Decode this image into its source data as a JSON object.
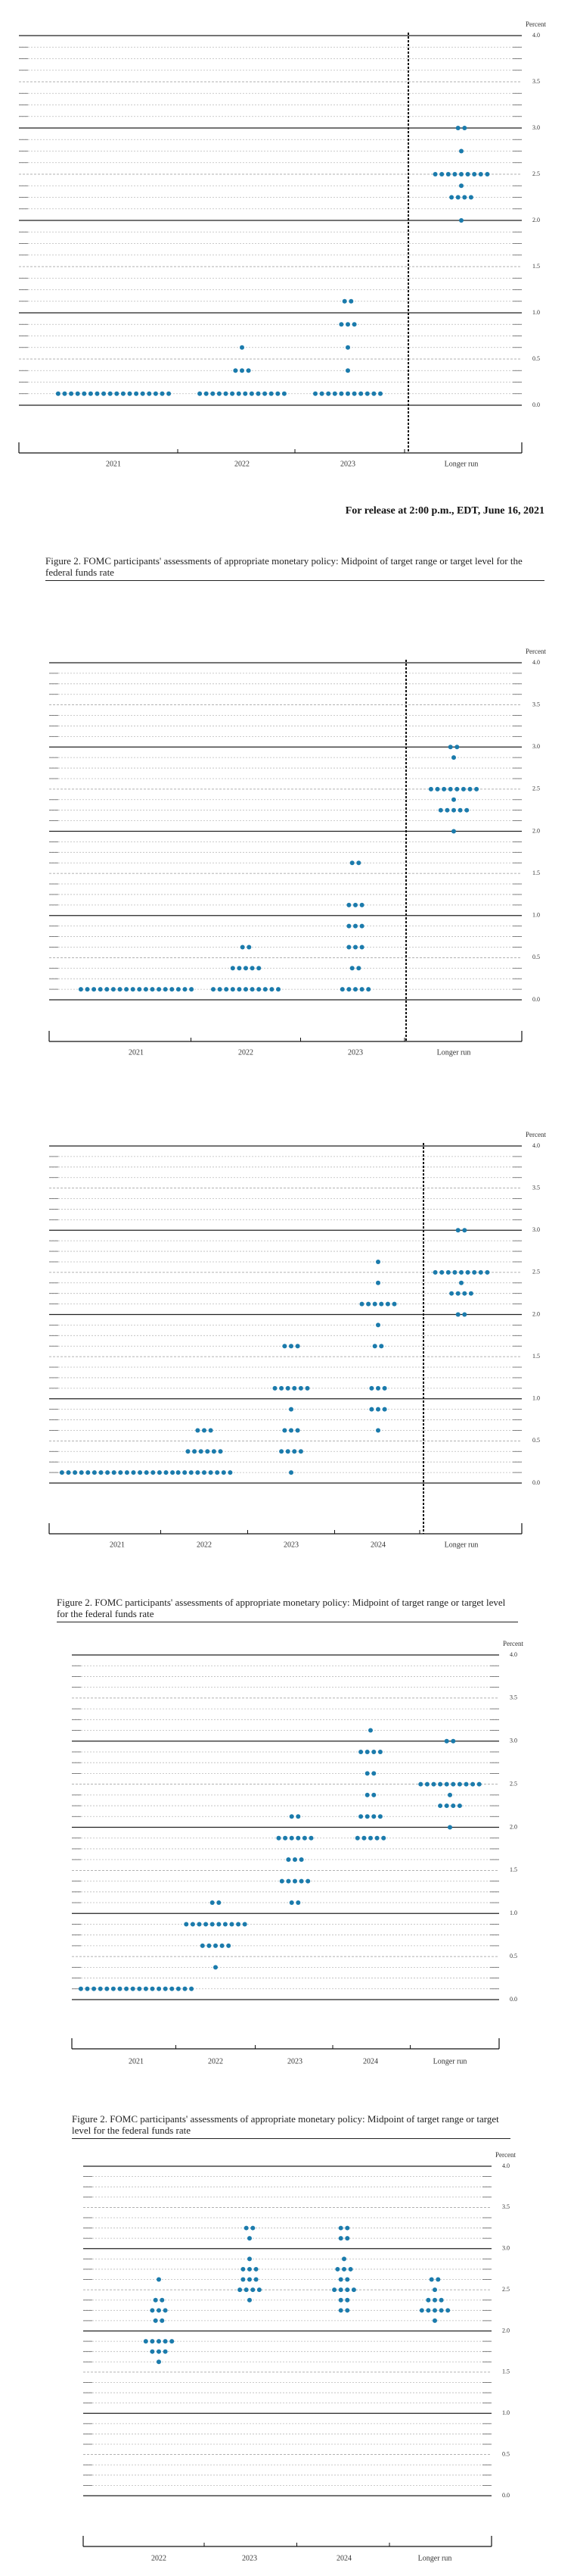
{
  "release": "For release at 2:00 p.m., EDT, June 16, 2021",
  "chart_data": [
    {
      "type": "dot",
      "y_label": "Percent",
      "color": "#1b7bac",
      "grid": true,
      "categories": [
        "2021",
        "2022",
        "2023",
        "Longer run"
      ],
      "ylim": [
        0,
        4
      ],
      "yticks": [
        {
          "value": 0,
          "label": "0.0"
        },
        0.5,
        {
          "value": 1,
          "label": "1.0"
        },
        1.5,
        {
          "value": 2,
          "label": "2.0"
        },
        2.5,
        {
          "value": 3,
          "label": "3.0"
        },
        3.5,
        {
          "value": 4,
          "label": "4.0"
        }
      ],
      "dots": [
        [
          {
            "value": 0.125,
            "count": 18
          }
        ],
        [
          {
            "value": 0.125,
            "count": 14
          },
          {
            "value": 0.375,
            "count": 3
          },
          {
            "value": 0.625,
            "count": 1
          }
        ],
        [
          {
            "value": 0.125,
            "count": 11
          },
          {
            "value": 0.375,
            "count": 1
          },
          {
            "value": 0.625,
            "count": 1
          },
          {
            "value": 0.875,
            "count": 3
          },
          {
            "value": 1.125,
            "count": 2
          }
        ],
        [
          {
            "value": 2.0,
            "count": 1
          },
          {
            "value": 2.25,
            "count": 4
          },
          {
            "value": 2.375,
            "count": 1
          },
          {
            "value": 2.5,
            "count": 9
          },
          {
            "value": 2.75,
            "count": 1
          },
          {
            "value": 3.0,
            "count": 2
          }
        ]
      ]
    },
    {
      "type": "dot",
      "title": "Figure 2.  FOMC participants' assessments of appropriate monetary policy:  Midpoint of target range or target level for the federal funds rate",
      "y_label": "Percent",
      "color": "#1b7bac",
      "grid": true,
      "categories": [
        "2021",
        "2022",
        "2023",
        "Longer run"
      ],
      "ylim": [
        0,
        4
      ],
      "yticks": [
        {
          "value": 0,
          "label": "0.0"
        },
        0.5,
        {
          "value": 1,
          "label": "1.0"
        },
        1.5,
        {
          "value": 2,
          "label": "2.0"
        },
        2.5,
        {
          "value": 3,
          "label": "3.0"
        },
        3.5,
        {
          "value": 4,
          "label": "4.0"
        }
      ],
      "dots": [
        [
          {
            "value": 0.125,
            "count": 18
          }
        ],
        [
          {
            "value": 0.125,
            "count": 11
          },
          {
            "value": 0.375,
            "count": 5
          },
          {
            "value": 0.625,
            "count": 2
          }
        ],
        [
          {
            "value": 0.125,
            "count": 5
          },
          {
            "value": 0.375,
            "count": 2
          },
          {
            "value": 0.625,
            "count": 3
          },
          {
            "value": 0.875,
            "count": 3
          },
          {
            "value": 1.125,
            "count": 3
          },
          {
            "value": 1.625,
            "count": 2
          }
        ],
        [
          {
            "value": 2.0,
            "count": 1
          },
          {
            "value": 2.25,
            "count": 5
          },
          {
            "value": 2.375,
            "count": 1
          },
          {
            "value": 2.5,
            "count": 8
          },
          {
            "value": 2.875,
            "count": 1
          },
          {
            "value": 3.0,
            "count": 2
          }
        ]
      ]
    },
    {
      "type": "dot",
      "y_label": "Percent",
      "color": "#1b7bac",
      "grid": true,
      "categories": [
        "2021",
        "2022",
        "2023",
        "2024",
        "Longer run"
      ],
      "ylim": [
        0,
        4
      ],
      "yticks": [
        {
          "value": 0,
          "label": "0.0"
        },
        0.5,
        {
          "value": 1,
          "label": "1.0"
        },
        1.5,
        {
          "value": 2,
          "label": "2.0"
        },
        2.5,
        {
          "value": 3,
          "label": "3.0"
        },
        3.5,
        {
          "value": 4,
          "label": "4.0"
        }
      ],
      "dots": [
        [
          {
            "value": 0.125,
            "count": 18
          }
        ],
        [
          {
            "value": 0.125,
            "count": 9
          },
          {
            "value": 0.375,
            "count": 6
          },
          {
            "value": 0.625,
            "count": 3
          }
        ],
        [
          {
            "value": 0.125,
            "count": 1
          },
          {
            "value": 0.375,
            "count": 4
          },
          {
            "value": 0.625,
            "count": 3
          },
          {
            "value": 0.875,
            "count": 1
          },
          {
            "value": 1.125,
            "count": 6
          },
          {
            "value": 1.625,
            "count": 3
          }
        ],
        [
          {
            "value": 0.625,
            "count": 1
          },
          {
            "value": 0.875,
            "count": 3
          },
          {
            "value": 1.125,
            "count": 3
          },
          {
            "value": 1.625,
            "count": 2
          },
          {
            "value": 1.875,
            "count": 1
          },
          {
            "value": 2.125,
            "count": 6
          },
          {
            "value": 2.375,
            "count": 1
          },
          {
            "value": 2.625,
            "count": 1
          }
        ],
        [
          {
            "value": 2.0,
            "count": 2
          },
          {
            "value": 2.25,
            "count": 4
          },
          {
            "value": 2.375,
            "count": 1
          },
          {
            "value": 2.5,
            "count": 9
          },
          {
            "value": 3.0,
            "count": 2
          }
        ]
      ]
    },
    {
      "type": "dot",
      "title": "Figure 2.  FOMC participants' assessments of appropriate monetary policy:  Midpoint of target range or target level for the federal funds rate",
      "y_label": "Percent",
      "color": "#1b7bac",
      "grid": true,
      "categories": [
        "2021",
        "2022",
        "2023",
        "2024",
        "Longer run"
      ],
      "ylim": [
        0,
        4
      ],
      "yticks": [
        {
          "value": 0,
          "label": "0.0"
        },
        0.5,
        {
          "value": 1,
          "label": "1.0"
        },
        1.5,
        {
          "value": 2,
          "label": "2.0"
        },
        2.5,
        {
          "value": 3,
          "label": "3.0"
        },
        3.5,
        {
          "value": 4,
          "label": "4.0"
        }
      ],
      "dots": [
        [
          {
            "value": 0.125,
            "count": 18
          }
        ],
        [
          {
            "value": 0.375,
            "count": 1
          },
          {
            "value": 0.625,
            "count": 5
          },
          {
            "value": 0.875,
            "count": 10
          },
          {
            "value": 1.125,
            "count": 2
          }
        ],
        [
          {
            "value": 1.125,
            "count": 2
          },
          {
            "value": 1.375,
            "count": 5
          },
          {
            "value": 1.625,
            "count": 3
          },
          {
            "value": 1.875,
            "count": 6
          },
          {
            "value": 2.125,
            "count": 2
          }
        ],
        [
          {
            "value": 1.875,
            "count": 5
          },
          {
            "value": 2.125,
            "count": 4
          },
          {
            "value": 2.375,
            "count": 2
          },
          {
            "value": 2.625,
            "count": 2
          },
          {
            "value": 2.875,
            "count": 4
          },
          {
            "value": 3.125,
            "count": 1
          }
        ],
        [
          {
            "value": 2.0,
            "count": 1
          },
          {
            "value": 2.25,
            "count": 4
          },
          {
            "value": 2.375,
            "count": 1
          },
          {
            "value": 2.5,
            "count": 10
          },
          {
            "value": 3.0,
            "count": 2
          }
        ]
      ]
    },
    {
      "type": "dot",
      "title": "Figure 2.  FOMC participants' assessments of appropriate monetary policy:  Midpoint of target range or target level for the federal funds rate",
      "y_label": "Percent",
      "color": "#1b7bac",
      "grid": true,
      "categories": [
        "2022",
        "2023",
        "2024",
        "Longer run"
      ],
      "ylim": [
        0,
        4
      ],
      "yticks": [
        {
          "value": 0,
          "label": "0.0"
        },
        0.5,
        {
          "value": 1,
          "label": "1.0"
        },
        1.5,
        {
          "value": 2,
          "label": "2.0"
        },
        2.5,
        {
          "value": 3,
          "label": "3.0"
        },
        3.5,
        {
          "value": 4,
          "label": "4.0"
        }
      ],
      "dots": [
        [
          {
            "value": 1.625,
            "count": 1
          },
          {
            "value": 1.75,
            "count": 3
          },
          {
            "value": 1.875,
            "count": 5
          },
          {
            "value": 2.125,
            "count": 2
          },
          {
            "value": 2.25,
            "count": 3
          },
          {
            "value": 2.375,
            "count": 2
          },
          {
            "value": 2.625,
            "count": 1
          }
        ],
        [
          {
            "value": 2.375,
            "count": 1
          },
          {
            "value": 2.5,
            "count": 4
          },
          {
            "value": 2.625,
            "count": 3
          },
          {
            "value": 2.75,
            "count": 3
          },
          {
            "value": 2.875,
            "count": 1
          },
          {
            "value": 3.125,
            "count": 1
          },
          {
            "value": 3.25,
            "count": 2
          }
        ],
        [
          {
            "value": 2.25,
            "count": 2
          },
          {
            "value": 2.375,
            "count": 2
          },
          {
            "value": 2.5,
            "count": 4
          },
          {
            "value": 2.625,
            "count": 2
          },
          {
            "value": 2.75,
            "count": 3
          },
          {
            "value": 2.875,
            "count": 1
          },
          {
            "value": 3.125,
            "count": 2
          },
          {
            "value": 3.25,
            "count": 2
          }
        ],
        [
          {
            "value": 2.125,
            "count": 1
          },
          {
            "value": 2.25,
            "count": 5
          },
          {
            "value": 2.375,
            "count": 3
          },
          {
            "value": 2.5,
            "count": 1
          },
          {
            "value": 2.625,
            "count": 2
          }
        ]
      ]
    }
  ]
}
